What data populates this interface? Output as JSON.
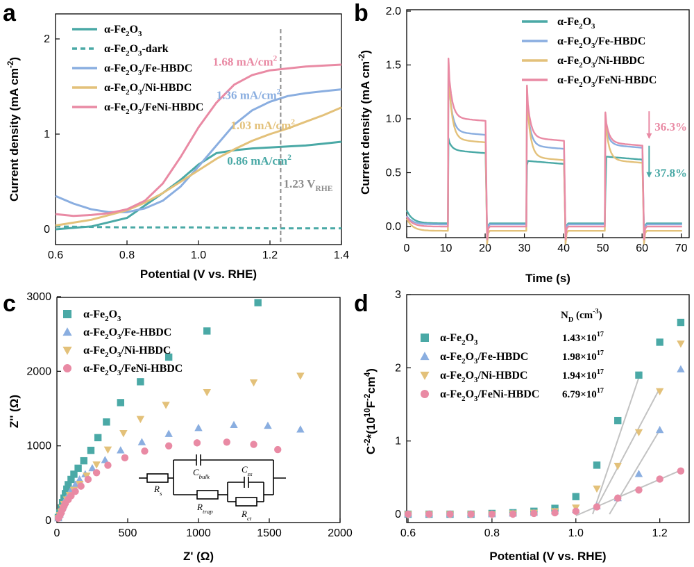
{
  "colors": {
    "fe2o3": "#4aa9a6",
    "fe_hbdc": "#8aaee0",
    "ni_hbdc": "#e3c17a",
    "feni_hbdc": "#e98aa4",
    "gray": "#8c8c8c",
    "fitline": "#c2c2c2"
  },
  "chart_data": [
    {
      "panel": "a",
      "type": "line",
      "xlabel": "Potential (V vs. RHE)",
      "ylabel": "Current density (mA cm⁻²)",
      "xlim": [
        0.6,
        1.4
      ],
      "ylim": [
        -0.1,
        2.2
      ],
      "xticks": [
        "0.6",
        "0.8",
        "1.0",
        "1.2",
        "1.4"
      ],
      "yticks": [
        "0",
        "1",
        "2"
      ],
      "legend_position": "top-left",
      "vline": {
        "x": 1.23,
        "label": "1.23 V",
        "label_sub": "RHE"
      },
      "series": [
        {
          "name": "α-Fe₂O₃",
          "key": "fe2o3",
          "style": "solid",
          "x": [
            0.6,
            0.7,
            0.8,
            0.9,
            0.95,
            1.0,
            1.05,
            1.1,
            1.15,
            1.2,
            1.25,
            1.3,
            1.35,
            1.4
          ],
          "y": [
            0.0,
            0.03,
            0.12,
            0.38,
            0.52,
            0.68,
            0.8,
            0.83,
            0.85,
            0.86,
            0.87,
            0.88,
            0.9,
            0.92
          ]
        },
        {
          "name": "α-Fe₂O₃-dark",
          "key": "fe2o3",
          "style": "dashed",
          "x": [
            0.6,
            0.8,
            1.0,
            1.2,
            1.4
          ],
          "y": [
            0.03,
            0.02,
            0.02,
            0.01,
            0.01
          ]
        },
        {
          "name": "α-Fe₂O₃/Fe-HBDC",
          "key": "fe_hbdc",
          "style": "solid",
          "x": [
            0.6,
            0.65,
            0.7,
            0.75,
            0.8,
            0.85,
            0.9,
            0.95,
            1.0,
            1.05,
            1.1,
            1.15,
            1.2,
            1.25,
            1.3,
            1.35,
            1.4
          ],
          "y": [
            0.35,
            0.27,
            0.21,
            0.18,
            0.18,
            0.22,
            0.3,
            0.45,
            0.66,
            0.88,
            1.1,
            1.25,
            1.34,
            1.4,
            1.43,
            1.45,
            1.47
          ]
        },
        {
          "name": "α-Fe₂O₃/Ni-HBDC",
          "key": "ni_hbdc",
          "style": "solid",
          "x": [
            0.6,
            0.7,
            0.8,
            0.85,
            0.9,
            0.95,
            1.0,
            1.05,
            1.1,
            1.15,
            1.2,
            1.25,
            1.3,
            1.35,
            1.4
          ],
          "y": [
            0.04,
            0.1,
            0.2,
            0.28,
            0.38,
            0.5,
            0.62,
            0.74,
            0.84,
            0.93,
            1.0,
            1.06,
            1.13,
            1.2,
            1.28
          ]
        },
        {
          "name": "α-Fe₂O₃/FeNi-HBDC",
          "key": "feni_hbdc",
          "style": "solid",
          "x": [
            0.6,
            0.65,
            0.7,
            0.75,
            0.8,
            0.85,
            0.9,
            0.95,
            1.0,
            1.05,
            1.1,
            1.15,
            1.2,
            1.25,
            1.3,
            1.35,
            1.4
          ],
          "y": [
            0.16,
            0.14,
            0.15,
            0.17,
            0.21,
            0.3,
            0.48,
            0.76,
            1.07,
            1.33,
            1.52,
            1.62,
            1.67,
            1.69,
            1.71,
            1.72,
            1.73
          ]
        }
      ],
      "annotations": [
        {
          "text": "1.68 mA/cm²",
          "key": "feni_hbdc",
          "x": 1.13,
          "y": 1.72
        },
        {
          "text": "1.36 mA/cm²",
          "key": "fe_hbdc",
          "x": 1.14,
          "y": 1.37
        },
        {
          "text": "1.03 mA/cm²",
          "key": "ni_hbdc",
          "x": 1.18,
          "y": 1.05
        },
        {
          "text": "0.86 mA/cm²",
          "key": "fe2o3",
          "x": 1.17,
          "y": 0.68
        }
      ]
    },
    {
      "panel": "b",
      "type": "line",
      "xlabel": "Time (s)",
      "ylabel": "Current density (mA cm⁻²)",
      "xlim": [
        0,
        72
      ],
      "ylim": [
        -0.1,
        2.0
      ],
      "xticks": [
        "0",
        "10",
        "20",
        "30",
        "40",
        "50",
        "60",
        "70"
      ],
      "yticks": [
        "0.0",
        "0.5",
        "1.0",
        "1.5",
        "2.0"
      ],
      "legend_position": "top-right",
      "series": [
        {
          "name": "α-Fe₂O₃",
          "key": "fe2o3",
          "spike": 0.82,
          "plateau": 0.75,
          "end": 0.65,
          "dark": 0.03
        },
        {
          "name": "α-Fe₂O₃/Fe-HBDC",
          "key": "fe_hbdc",
          "spike": 1.48,
          "plateau": 0.92,
          "end": 0.76,
          "dark": 0.02
        },
        {
          "name": "α-Fe₂O₃/Ni-HBDC",
          "key": "ni_hbdc",
          "spike": 1.55,
          "plateau": 0.85,
          "end": 0.62,
          "dark": -0.04
        },
        {
          "name": "α-Fe₂O₃/FeNi-HBDC",
          "key": "feni_hbdc",
          "spike": 1.56,
          "plateau": 1.05,
          "end": 0.78,
          "dark": 0.0
        }
      ],
      "on_intervals": [
        [
          10.5,
          20.5
        ],
        [
          30.5,
          40.5
        ],
        [
          50.5,
          60.5
        ]
      ],
      "annotations": [
        {
          "text": "36.3%",
          "key": "feni_hbdc",
          "x": 62.5,
          "y": 0.93
        },
        {
          "text": "37.8%",
          "key": "fe2o3",
          "x": 62.5,
          "y": 0.5
        }
      ]
    },
    {
      "panel": "c",
      "type": "scatter",
      "xlabel": "Z' (Ω)",
      "ylabel": "Z'' (Ω)",
      "xlim": [
        0,
        2000
      ],
      "ylim": [
        0,
        3000
      ],
      "xticks": [
        "0",
        "500",
        "1000",
        "1500",
        "2000"
      ],
      "yticks": [
        "0",
        "1000",
        "2000",
        "3000"
      ],
      "legend_position": "top-left",
      "series": [
        {
          "name": "α-Fe₂O₃",
          "key": "fe2o3",
          "marker": "square",
          "x": [
            10,
            20,
            30,
            40,
            50,
            60,
            70,
            80,
            100,
            120,
            150,
            190,
            240,
            290,
            350,
            450,
            590,
            790,
            1060,
            1420
          ],
          "y": [
            40,
            100,
            170,
            240,
            300,
            360,
            420,
            480,
            550,
            620,
            700,
            800,
            940,
            1110,
            1320,
            1580,
            1860,
            2190,
            2540,
            2920
          ]
        },
        {
          "name": "α-Fe₂O₃/Fe-HBDC",
          "key": "fe_hbdc",
          "marker": "triangle-up",
          "x": [
            10,
            20,
            30,
            40,
            50,
            60,
            80,
            100,
            130,
            160,
            200,
            250,
            340,
            450,
            600,
            790,
            1000,
            1250,
            1490,
            1720
          ],
          "y": [
            30,
            80,
            130,
            180,
            230,
            280,
            340,
            410,
            480,
            550,
            620,
            700,
            810,
            940,
            1050,
            1160,
            1240,
            1280,
            1270,
            1220
          ]
        },
        {
          "name": "α-Fe₂O₃/Ni-HBDC",
          "key": "ni_hbdc",
          "marker": "triangle-down",
          "x": [
            10,
            20,
            30,
            40,
            50,
            70,
            90,
            120,
            160,
            210,
            280,
            360,
            470,
            590,
            770,
            1060,
            1390,
            1720
          ],
          "y": [
            30,
            70,
            120,
            170,
            220,
            280,
            340,
            410,
            490,
            600,
            750,
            950,
            1170,
            1360,
            1550,
            1720,
            1850,
            1940
          ]
        },
        {
          "name": "α-Fe₂O₃/FeNi-HBDC",
          "key": "feni_hbdc",
          "marker": "circle",
          "x": [
            10,
            20,
            30,
            40,
            50,
            60,
            80,
            100,
            130,
            170,
            220,
            280,
            360,
            480,
            620,
            790,
            990,
            1200,
            1390,
            1560
          ],
          "y": [
            30,
            60,
            100,
            150,
            190,
            230,
            280,
            330,
            390,
            460,
            550,
            640,
            740,
            840,
            930,
            1000,
            1040,
            1050,
            1020,
            950
          ]
        }
      ],
      "circuit": {
        "labels": [
          "C",
          "bulk",
          "C",
          "ss",
          "R",
          "s",
          "R",
          "trap",
          "R",
          "ct"
        ]
      }
    },
    {
      "panel": "d",
      "type": "scatter",
      "xlabel": "Potential (V vs. RHE)",
      "ylabel_main": "C",
      "ylabel_sup": "-2",
      "ylabel_rest": "*(10",
      "ylabel_sup2": "10",
      "ylabel_unit": "F",
      "ylabel_sup3": "-2",
      "ylabel_unit2": "cm",
      "ylabel_sup4": "4",
      "ylabel_close": ")",
      "xlim": [
        0.6,
        1.27
      ],
      "ylim": [
        -0.05,
        3
      ],
      "xticks": [
        "0.6",
        "0.8",
        "1.0",
        "1.2"
      ],
      "yticks": [
        "0",
        "1",
        "2",
        "3"
      ],
      "legend_position": "top-left",
      "nd_header": "N",
      "nd_header_sub": "D",
      "nd_header_unit": " (cm",
      "nd_header_sup": "-3",
      "nd_header_close": ")",
      "series": [
        {
          "name": "α-Fe₂O₃",
          "key": "fe2o3",
          "marker": "square",
          "nd": "1.43×10",
          "nd_exp": "17",
          "x": [
            0.6,
            0.65,
            0.7,
            0.75,
            0.8,
            0.85,
            0.9,
            0.95,
            1.0,
            1.05,
            1.1,
            1.15,
            1.2,
            1.25
          ],
          "y": [
            0.0,
            0.0,
            0.0,
            0.0,
            0.01,
            0.02,
            0.04,
            0.08,
            0.24,
            0.67,
            1.28,
            1.9,
            2.35,
            2.62
          ],
          "fit": [
            [
              1.04,
              0.0
            ],
            [
              1.155,
              1.95
            ]
          ]
        },
        {
          "name": "α-Fe₂O₃/Fe-HBDC",
          "key": "fe_hbdc",
          "marker": "triangle-up",
          "nd": "1.98×10",
          "nd_exp": "17",
          "x": [
            0.6,
            0.65,
            0.7,
            0.75,
            0.8,
            0.85,
            0.9,
            0.95,
            1.0,
            1.05,
            1.1,
            1.15,
            1.2,
            1.25
          ],
          "y": [
            0.0,
            0.0,
            0.0,
            0.0,
            0.0,
            0.01,
            0.02,
            0.04,
            0.06,
            0.11,
            0.22,
            0.55,
            1.15,
            1.98
          ],
          "fit": [
            [
              1.08,
              0.0
            ],
            [
              1.2,
              1.15
            ]
          ]
        },
        {
          "name": "α-Fe₂O₃/Ni-HBDC",
          "key": "ni_hbdc",
          "marker": "triangle-down",
          "nd": "1.94×10",
          "nd_exp": "17",
          "x": [
            0.6,
            0.65,
            0.7,
            0.75,
            0.8,
            0.85,
            0.9,
            0.95,
            1.0,
            1.05,
            1.1,
            1.15,
            1.2,
            1.25
          ],
          "y": [
            0.0,
            0.0,
            0.0,
            0.0,
            0.0,
            0.01,
            0.02,
            0.04,
            0.09,
            0.35,
            0.66,
            1.12,
            1.68,
            2.33
          ],
          "fit": [
            [
              1.05,
              0.1
            ],
            [
              1.2,
              1.72
            ]
          ]
        },
        {
          "name": "α-Fe₂O₃/FeNi-HBDC",
          "key": "feni_hbdc",
          "marker": "circle",
          "nd": "6.79×10",
          "nd_exp": "17",
          "x": [
            0.6,
            0.65,
            0.7,
            0.75,
            0.8,
            0.85,
            0.9,
            0.95,
            1.0,
            1.05,
            1.1,
            1.15,
            1.2,
            1.25
          ],
          "y": [
            0.0,
            0.0,
            0.0,
            0.0,
            0.0,
            0.0,
            0.01,
            0.02,
            0.04,
            0.1,
            0.22,
            0.33,
            0.48,
            0.59
          ],
          "fit": [
            [
              1.0,
              -0.02
            ],
            [
              1.25,
              0.6
            ]
          ]
        }
      ]
    }
  ]
}
